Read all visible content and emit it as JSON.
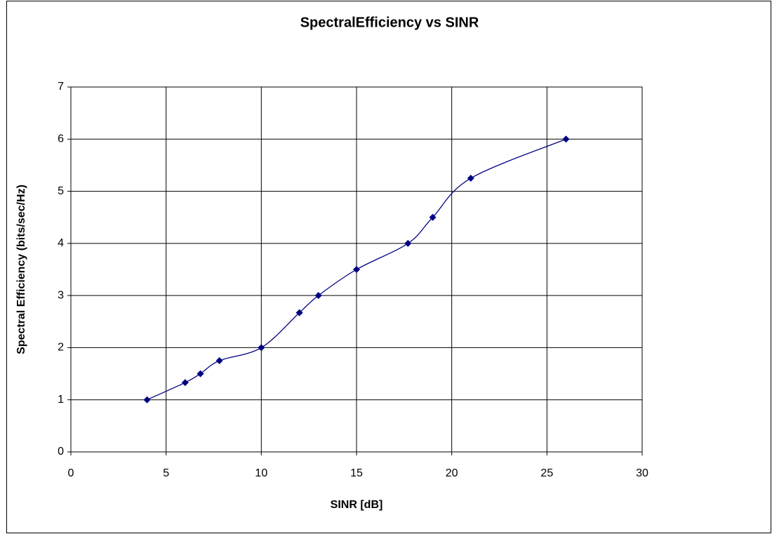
{
  "chart_data": {
    "type": "line",
    "title": "SpectralEfficiency vs SINR",
    "x_label": "SINR [dB]",
    "y_label": "Spectral Efficiency (bits/sec/Hz)",
    "x": [
      4,
      6,
      6.8,
      7.8,
      10,
      12,
      13,
      15,
      17.7,
      19,
      21,
      26
    ],
    "series": [
      {
        "name": "Spectral Efficiency",
        "color": "#000080",
        "values": [
          1,
          1.33,
          1.5,
          1.75,
          2,
          2.67,
          3,
          3.5,
          4,
          4.5,
          5.25,
          6
        ]
      }
    ],
    "xlim": [
      0,
      30
    ],
    "xticks": [
      0,
      5,
      10,
      15,
      20,
      25,
      30
    ],
    "ylim": [
      0,
      7
    ],
    "yticks": [
      0,
      1,
      2,
      3,
      4,
      5,
      6,
      7
    ],
    "grid": true,
    "smooth": true
  }
}
